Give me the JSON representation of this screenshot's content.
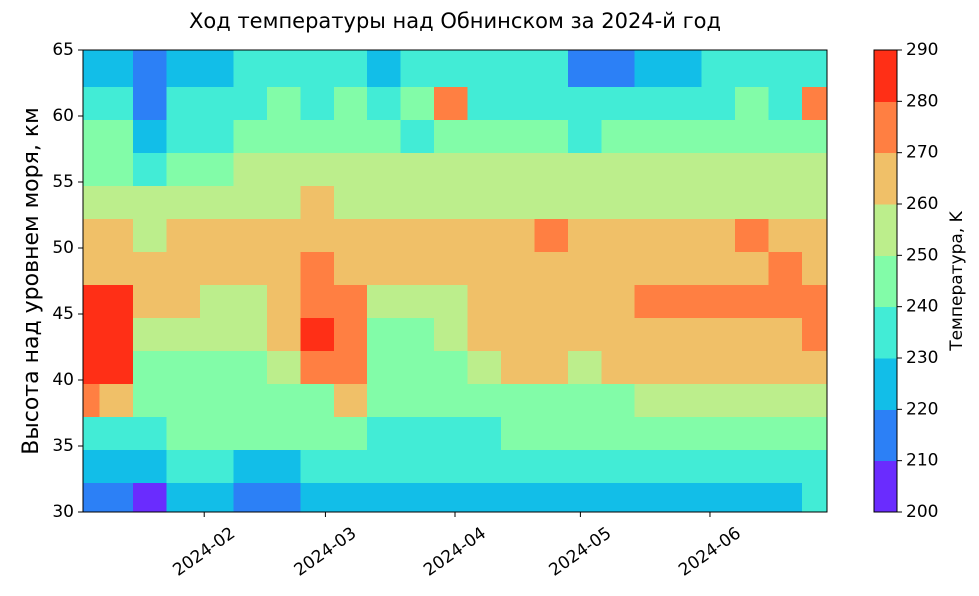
{
  "chart_data": {
    "type": "contourf",
    "title": "Ход температуры над Обнинском за 2024-й год",
    "y_label": "Высота над уровнем моря, км",
    "colorbar_label": "Температура, K",
    "xlim": [
      3,
      181
    ],
    "xticks": [
      {
        "value": 32,
        "label": "2024-02"
      },
      {
        "value": 61,
        "label": "2024-03"
      },
      {
        "value": 92,
        "label": "2024-04"
      },
      {
        "value": 122,
        "label": "2024-05"
      },
      {
        "value": 153,
        "label": "2024-06"
      }
    ],
    "ylim": [
      30,
      65
    ],
    "yticks": [
      30,
      35,
      40,
      45,
      50,
      55,
      60,
      65
    ],
    "levels": [
      200,
      210,
      220,
      230,
      240,
      250,
      260,
      270,
      280,
      290
    ],
    "colors": [
      "#6a2cfe",
      "#2c80f6",
      "#12bee8",
      "#42ecd6",
      "#82fca8",
      "#bcee8c",
      "#f0c068",
      "#ff7f42",
      "#ff2f16"
    ],
    "x": [
      3,
      11,
      19,
      27,
      35,
      43,
      51,
      59,
      67,
      75,
      83,
      91,
      99,
      107,
      115,
      123,
      131,
      139,
      147,
      155,
      163,
      171,
      179
    ],
    "y": [
      31,
      33.5,
      36,
      38.5,
      41,
      43.5,
      46,
      48.5,
      51,
      53.5,
      56,
      58.5,
      61,
      63.5
    ],
    "z": [
      [
        215,
        228,
        235,
        270,
        283,
        283,
        283,
        265,
        260,
        258,
        245,
        240,
        235,
        225
      ],
      [
        212,
        225,
        238,
        262,
        283,
        283,
        283,
        268,
        262,
        258,
        248,
        240,
        232,
        222
      ],
      [
        205,
        220,
        232,
        242,
        245,
        250,
        262,
        262,
        255,
        250,
        238,
        228,
        215,
        210
      ],
      [
        222,
        230,
        240,
        245,
        248,
        255,
        262,
        264,
        262,
        255,
        245,
        238,
        232,
        225
      ],
      [
        220,
        230,
        242,
        245,
        246,
        250,
        258,
        262,
        264,
        256,
        248,
        238,
        235,
        228
      ],
      [
        215,
        228,
        242,
        245,
        246,
        250,
        255,
        262,
        265,
        258,
        250,
        240,
        235,
        232
      ],
      [
        215,
        225,
        240,
        245,
        250,
        262,
        268,
        265,
        265,
        256,
        250,
        240,
        245,
        232
      ],
      [
        222,
        232,
        240,
        245,
        272,
        283,
        278,
        272,
        268,
        262,
        252,
        242,
        238,
        230
      ],
      [
        225,
        235,
        245,
        262,
        270,
        275,
        272,
        268,
        265,
        258,
        250,
        242,
        242,
        238
      ],
      [
        222,
        230,
        235,
        240,
        245,
        248,
        255,
        262,
        262,
        258,
        255,
        242,
        235,
        228
      ],
      [
        225,
        232,
        235,
        240,
        245,
        248,
        258,
        262,
        262,
        256,
        250,
        238,
        240,
        232
      ],
      [
        228,
        232,
        238,
        242,
        245,
        250,
        258,
        262,
        262,
        256,
        250,
        245,
        272,
        238
      ],
      [
        228,
        232,
        238,
        245,
        250,
        262,
        262,
        265,
        262,
        256,
        250,
        240,
        235,
        230
      ],
      [
        228,
        232,
        240,
        245,
        262,
        265,
        265,
        262,
        265,
        258,
        250,
        240,
        238,
        232
      ],
      [
        228,
        232,
        240,
        245,
        262,
        265,
        265,
        265,
        272,
        258,
        250,
        242,
        238,
        232
      ],
      [
        225,
        230,
        240,
        245,
        250,
        262,
        265,
        265,
        262,
        258,
        250,
        238,
        232,
        218
      ],
      [
        228,
        232,
        242,
        248,
        262,
        265,
        265,
        265,
        265,
        258,
        255,
        245,
        235,
        215
      ],
      [
        228,
        235,
        242,
        250,
        262,
        265,
        272,
        262,
        265,
        258,
        255,
        245,
        238,
        222
      ],
      [
        228,
        235,
        245,
        250,
        262,
        265,
        272,
        265,
        265,
        256,
        255,
        245,
        238,
        228
      ],
      [
        228,
        235,
        242,
        250,
        262,
        265,
        272,
        265,
        268,
        258,
        255,
        242,
        238,
        230
      ],
      [
        228,
        235,
        242,
        250,
        262,
        265,
        272,
        268,
        272,
        258,
        255,
        245,
        240,
        232
      ],
      [
        228,
        235,
        245,
        252,
        262,
        268,
        272,
        272,
        265,
        258,
        255,
        245,
        238,
        235
      ],
      [
        230,
        238,
        245,
        255,
        262,
        272,
        272,
        265,
        262,
        258,
        252,
        245,
        275,
        238
      ]
    ]
  }
}
